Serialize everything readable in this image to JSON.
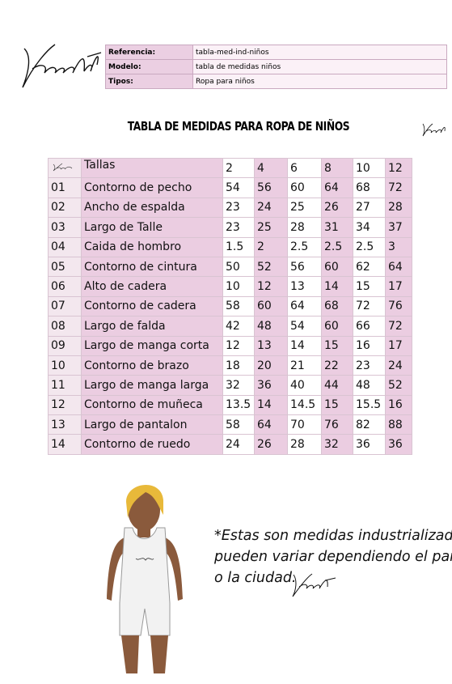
{
  "info": {
    "rows": [
      {
        "label": "Referencia:",
        "value": "tabla-med-ind-niños"
      },
      {
        "label": "Modelo:",
        "value": "tabla de medidas niños"
      },
      {
        "label": "Tipos:",
        "value": "Ropa para niños"
      }
    ]
  },
  "title": "TABLA DE MEDIDAS PARA ROPA DE NIÑOS",
  "table": {
    "header": {
      "label": "Tallas",
      "sizes": [
        "2",
        "4",
        "6",
        "8",
        "10",
        "12"
      ]
    },
    "rows": [
      {
        "num": "01",
        "name": "Contorno de pecho",
        "values": [
          "54",
          "56",
          "60",
          "64",
          "68",
          "72"
        ]
      },
      {
        "num": "02",
        "name": "Ancho de espalda",
        "values": [
          "23",
          "24",
          "25",
          "26",
          "27",
          "28"
        ]
      },
      {
        "num": "03",
        "name": "Largo de Talle",
        "values": [
          "23",
          "25",
          "28",
          "31",
          "34",
          "37"
        ]
      },
      {
        "num": "04",
        "name": "Caida de hombro",
        "values": [
          "1.5",
          "2",
          "2.5",
          "2.5",
          "2.5",
          "3"
        ]
      },
      {
        "num": "05",
        "name": "Contorno de cintura",
        "values": [
          "50",
          "52",
          "56",
          "60",
          "62",
          "64"
        ]
      },
      {
        "num": "06",
        "name": "Alto de cadera",
        "values": [
          "10",
          "12",
          "13",
          "14",
          "15",
          "17"
        ]
      },
      {
        "num": "07",
        "name": "Contorno de cadera",
        "values": [
          "58",
          "60",
          "64",
          "68",
          "72",
          "76"
        ]
      },
      {
        "num": "08",
        "name": "Largo de falda",
        "values": [
          "42",
          "48",
          "54",
          "60",
          "66",
          "72"
        ]
      },
      {
        "num": "09",
        "name": "Largo de manga corta",
        "values": [
          "12",
          "13",
          "14",
          "15",
          "16",
          "17"
        ]
      },
      {
        "num": "10",
        "name": "Contorno de brazo",
        "values": [
          "18",
          "20",
          "21",
          "22",
          "23",
          "24"
        ]
      },
      {
        "num": "11",
        "name": "Largo de manga larga",
        "values": [
          "32",
          "36",
          "40",
          "44",
          "48",
          "52"
        ]
      },
      {
        "num": "12",
        "name": "Contorno de muñeca",
        "values": [
          "13.5",
          "14",
          "14.5",
          "15",
          "15.5",
          "16"
        ]
      },
      {
        "num": "13",
        "name": "Largo de pantalon",
        "values": [
          "58",
          "64",
          "70",
          "76",
          "82",
          "88"
        ]
      },
      {
        "num": "14",
        "name": "Contorno de ruedo",
        "values": [
          "24",
          "26",
          "28",
          "32",
          "36",
          "36"
        ]
      }
    ]
  },
  "note": {
    "lines": [
      "*Estas son medidas industrializadas,",
      "pueden variar dependiendo el pais",
      "o la ciudad."
    ]
  }
}
